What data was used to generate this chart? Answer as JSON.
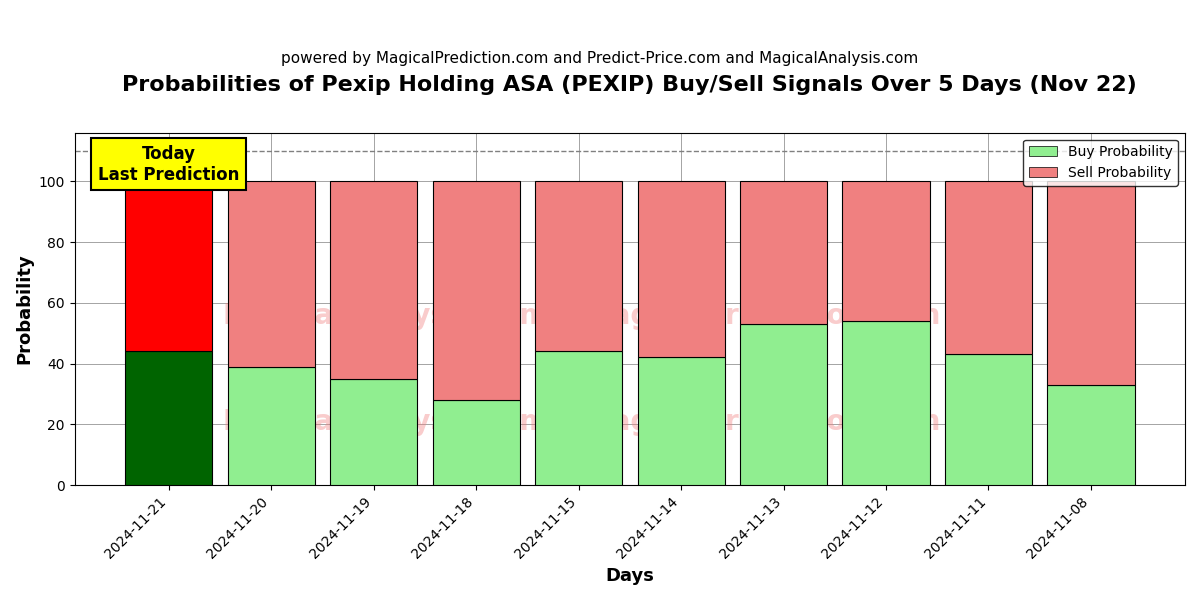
{
  "title": "Probabilities of Pexip Holding ASA (PEXIP) Buy/Sell Signals Over 5 Days (Nov 22)",
  "subtitle": "powered by MagicalPrediction.com and Predict-Price.com and MagicalAnalysis.com",
  "xlabel": "Days",
  "ylabel": "Probability",
  "categories": [
    "2024-11-21",
    "2024-11-20",
    "2024-11-19",
    "2024-11-18",
    "2024-11-15",
    "2024-11-14",
    "2024-11-13",
    "2024-11-12",
    "2024-11-11",
    "2024-11-08"
  ],
  "buy_values": [
    44,
    39,
    35,
    28,
    44,
    42,
    53,
    54,
    43,
    33
  ],
  "sell_values": [
    56,
    61,
    65,
    72,
    56,
    58,
    47,
    46,
    57,
    67
  ],
  "buy_colors": [
    "#006400",
    "#90EE90",
    "#90EE90",
    "#90EE90",
    "#90EE90",
    "#90EE90",
    "#90EE90",
    "#90EE90",
    "#90EE90",
    "#90EE90"
  ],
  "sell_colors": [
    "#FF0000",
    "#F08080",
    "#F08080",
    "#F08080",
    "#F08080",
    "#F08080",
    "#F08080",
    "#F08080",
    "#F08080",
    "#F08080"
  ],
  "today_label": "Today\nLast Prediction",
  "today_bg": "#FFFF00",
  "dashed_line_y": 110,
  "ylim": [
    0,
    116
  ],
  "yticks": [
    0,
    20,
    40,
    60,
    80,
    100
  ],
  "legend_buy_color": "#90EE90",
  "legend_sell_color": "#F08080",
  "watermark_color": "#F08080",
  "bar_width": 0.85,
  "title_fontsize": 16,
  "subtitle_fontsize": 11,
  "axis_label_fontsize": 13
}
